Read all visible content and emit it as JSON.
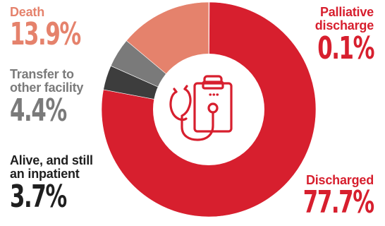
{
  "chart_data": {
    "type": "pie",
    "donut": true,
    "slices": [
      {
        "label": "Palliative discharge",
        "display_value": "0.1%",
        "value": 0.1,
        "color": "#d71f2e",
        "text_color": "#d71f2e"
      },
      {
        "label": "Discharged",
        "display_value": "77.7%",
        "value": 77.7,
        "color": "#d71f2e",
        "text_color": "#d71f2e"
      },
      {
        "label": "Alive, and still an inpatient",
        "display_value": "3.7%",
        "value": 3.7,
        "color": "#3d3d3d",
        "text_color": "#1f1f1f"
      },
      {
        "label": "Transfer to other facility",
        "display_value": "4.4%",
        "value": 4.4,
        "color": "#7a7a7a",
        "text_color": "#7a7a7a"
      },
      {
        "label": "Death",
        "display_value": "13.9%",
        "value": 13.9,
        "color": "#e5826c",
        "text_color": "#e5826c"
      }
    ],
    "center_icon": "stethoscope-clipboard-icon",
    "center_icon_color": "#d71f2e"
  },
  "labels": {
    "death_name": "Death",
    "death_pct": "13.9%",
    "transfer_name_1": "Transfer to",
    "transfer_name_2": "other facility",
    "transfer_pct": "4.4%",
    "inpatient_name_1": "Alive, and still",
    "inpatient_name_2": "an inpatient",
    "inpatient_pct": "3.7%",
    "palliative_name_1": "Palliative",
    "palliative_name_2": "discharge",
    "palliative_pct": "0.1%",
    "discharged_name": "Discharged",
    "discharged_pct": "77.7%"
  },
  "colors": {
    "death": "#e5826c",
    "transfer": "#7a7a7a",
    "inpatient": "#1f1f1f",
    "red": "#d71f2e"
  }
}
